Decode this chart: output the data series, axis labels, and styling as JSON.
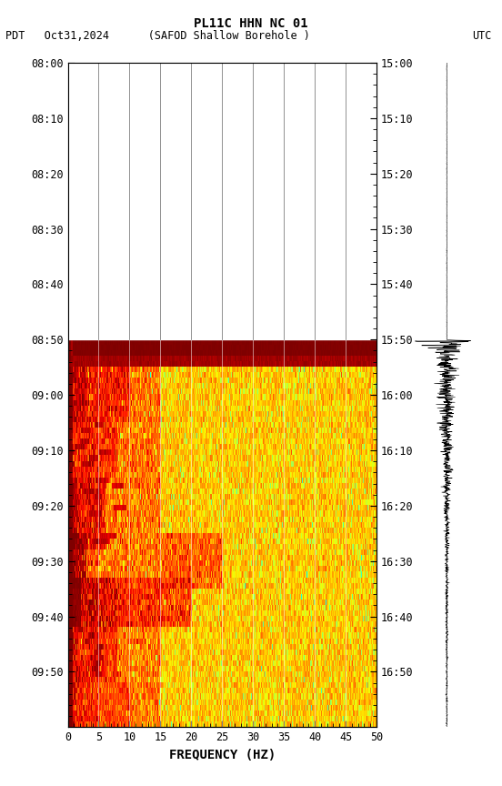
{
  "title_line1": "PL11C HHN NC 01",
  "title_line2_left": "PDT   Oct31,2024      (SAFOD Shallow Borehole )",
  "title_line2_right": "UTC",
  "left_yticks": [
    "08:00",
    "08:10",
    "08:20",
    "08:30",
    "08:40",
    "08:50",
    "09:00",
    "09:10",
    "09:20",
    "09:30",
    "09:40",
    "09:50"
  ],
  "right_yticks": [
    "15:00",
    "15:10",
    "15:20",
    "15:30",
    "15:40",
    "15:50",
    "16:00",
    "16:10",
    "16:20",
    "16:30",
    "16:40",
    "16:50"
  ],
  "xticks": [
    0,
    5,
    10,
    15,
    20,
    25,
    30,
    35,
    40,
    45,
    50
  ],
  "xlabel": "FREQUENCY (HZ)",
  "freq_max": 50,
  "total_rows": 120,
  "quiet_rows": 50,
  "signal_rows": 70,
  "background_color": "#ffffff",
  "vgrid_freqs": [
    5,
    10,
    15,
    20,
    25,
    30,
    35,
    40,
    45
  ],
  "ytick_positions": [
    0,
    10,
    20,
    30,
    40,
    50,
    60,
    70,
    80,
    90,
    100,
    110
  ]
}
